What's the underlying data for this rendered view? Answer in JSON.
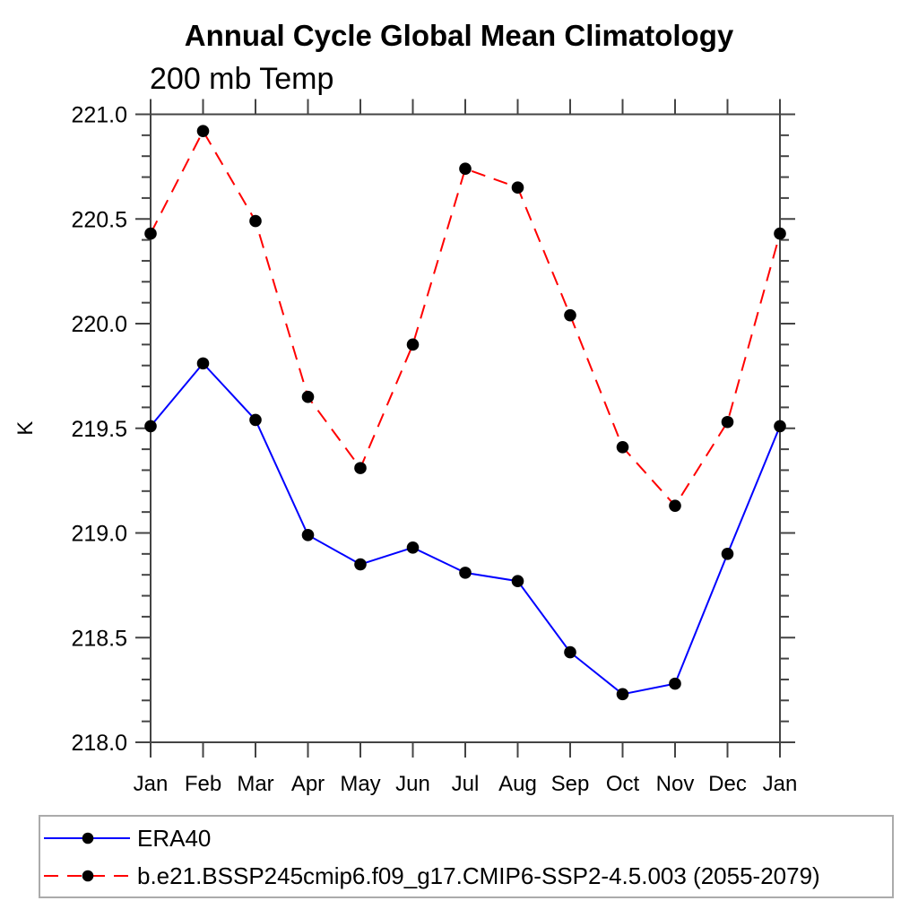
{
  "title": "Annual Cycle Global Mean Climatology",
  "subtitle": "200 mb Temp",
  "chart_data": {
    "type": "line",
    "x_categories": [
      "Jan",
      "Feb",
      "Mar",
      "Apr",
      "May",
      "Jun",
      "Jul",
      "Aug",
      "Sep",
      "Oct",
      "Nov",
      "Dec",
      "Jan"
    ],
    "ylabel": "K",
    "ylim": [
      218.0,
      221.0
    ],
    "ytick_major_step": 0.5,
    "ytick_minor_step": 0.1,
    "grid": false,
    "legend_position": "bottom",
    "axis_color": "#444444",
    "marker_color": "#000000",
    "series": [
      {
        "name": "ERA40",
        "color": "#0000ff",
        "style": "solid",
        "marker": "filled-circle",
        "values": [
          219.51,
          219.81,
          219.54,
          218.99,
          218.85,
          218.93,
          218.81,
          218.77,
          218.43,
          218.23,
          218.28,
          218.9,
          219.51
        ]
      },
      {
        "name": "b.e21.BSSP245cmip6.f09_g17.CMIP6-SSP2-4.5.003 (2055-2079)",
        "color": "#ff0000",
        "style": "dashed",
        "marker": "filled-circle",
        "values": [
          220.43,
          220.92,
          220.49,
          219.65,
          219.31,
          219.9,
          220.74,
          220.65,
          220.04,
          219.41,
          219.13,
          219.53,
          220.43
        ]
      }
    ]
  }
}
